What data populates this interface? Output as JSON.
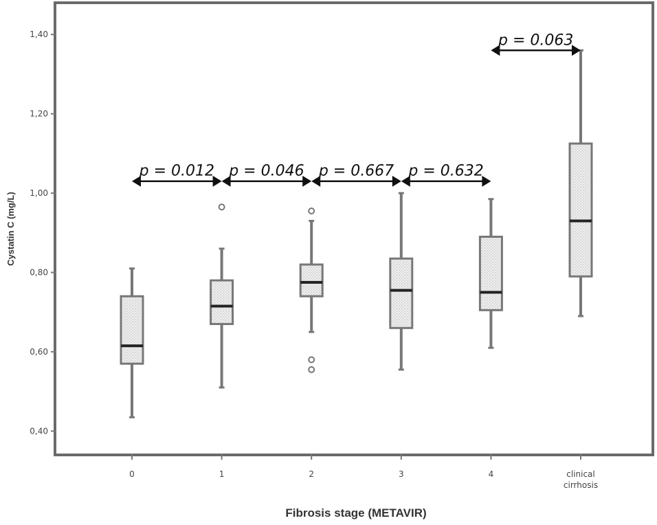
{
  "chart_data": {
    "type": "box",
    "title": "",
    "xlabel": "Fibrosis stage (METAVIR)",
    "ylabel": "Cystatin C (mg/L)",
    "ylim": [
      0.34,
      1.48
    ],
    "yticks": [
      0.4,
      0.6,
      0.8,
      1.0,
      1.2,
      1.4
    ],
    "ytick_labels": [
      "0,40",
      "0,60",
      "0,80",
      "1,00",
      "1,20",
      "1,40"
    ],
    "categories": [
      {
        "label": "0",
        "label_lines": [
          "0"
        ]
      },
      {
        "label": "1",
        "label_lines": [
          "1"
        ]
      },
      {
        "label": "2",
        "label_lines": [
          "2"
        ]
      },
      {
        "label": "3",
        "label_lines": [
          "3"
        ]
      },
      {
        "label": "4",
        "label_lines": [
          "4"
        ]
      },
      {
        "label": "clinical cirrhosis",
        "label_lines": [
          "clinical",
          "cirrhosis"
        ]
      }
    ],
    "boxes": [
      {
        "min": 0.435,
        "q1": 0.57,
        "median": 0.615,
        "q3": 0.74,
        "max": 0.81,
        "outliers": []
      },
      {
        "min": 0.51,
        "q1": 0.67,
        "median": 0.715,
        "q3": 0.78,
        "max": 0.86,
        "outliers": [
          0.965
        ]
      },
      {
        "min": 0.65,
        "q1": 0.74,
        "median": 0.775,
        "q3": 0.82,
        "max": 0.93,
        "outliers": [
          0.955,
          0.58,
          0.555
        ]
      },
      {
        "min": 0.555,
        "q1": 0.66,
        "median": 0.755,
        "q3": 0.835,
        "max": 1.0,
        "outliers": []
      },
      {
        "min": 0.61,
        "q1": 0.705,
        "median": 0.75,
        "q3": 0.89,
        "max": 0.985,
        "outliers": []
      },
      {
        "min": 0.69,
        "q1": 0.79,
        "median": 0.93,
        "q3": 1.125,
        "max": 1.36,
        "outliers": []
      }
    ],
    "comparisons": [
      {
        "from": 0,
        "to": 1,
        "label": "p = 0.012",
        "y": 1.03
      },
      {
        "from": 1,
        "to": 2,
        "label": "p = 0.046",
        "y": 1.03
      },
      {
        "from": 2,
        "to": 3,
        "label": "p = 0.667",
        "y": 1.03
      },
      {
        "from": 3,
        "to": 4,
        "label": "p = 0.632",
        "y": 1.03
      },
      {
        "from": 4,
        "to": 5,
        "label": "p = 0.063",
        "y": 1.36
      }
    ],
    "colors": {
      "box_fill": "#e9e9e9",
      "box_stroke": "#777777",
      "median": "#222222",
      "frame": "#666666"
    }
  }
}
